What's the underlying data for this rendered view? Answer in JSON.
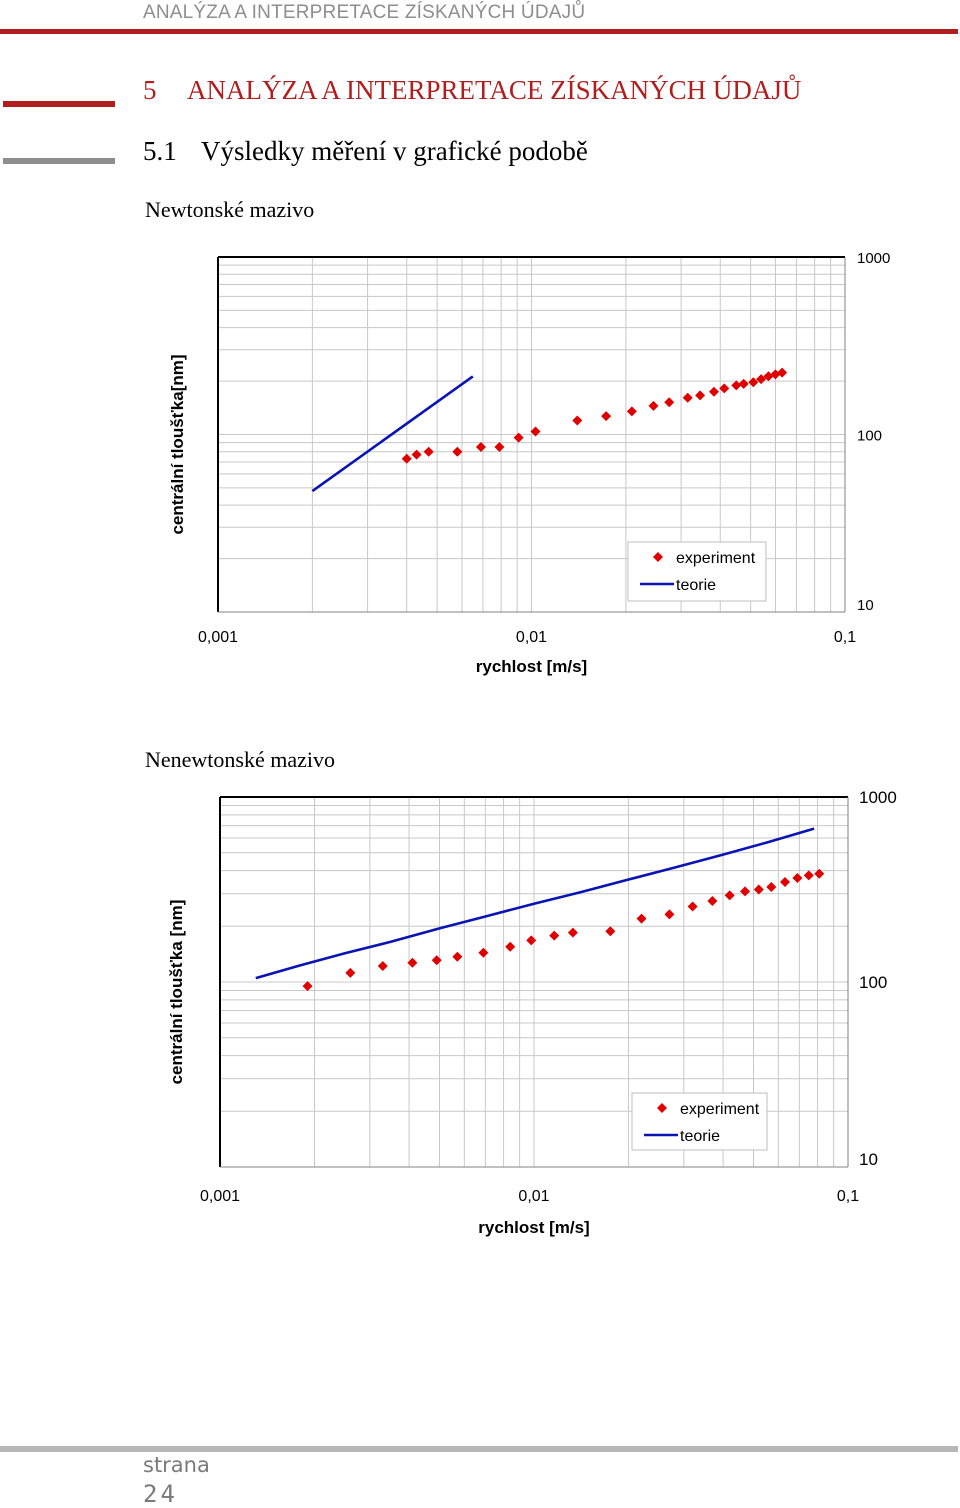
{
  "header": {
    "running_title": "ANALÝZA A INTERPRETACE ZÍSKANÝCH ÚDAJŮ"
  },
  "chapter": {
    "number": "5",
    "title": "ANALÝZA A INTERPRETACE ZÍSKANÝCH ÚDAJŮ"
  },
  "section": {
    "number": "5.1",
    "title": "Výsledky měření v grafické podobě"
  },
  "charts": [
    {
      "heading": "Newtonské mazivo"
    },
    {
      "heading": "Nenewtonské mazivo"
    }
  ],
  "colors": {
    "accent": "#b01e1e",
    "experiment": "#e00000",
    "teorie": "#0a14b4",
    "grid": "#c8c8c8"
  },
  "footer": {
    "label": "strana",
    "page": "24"
  },
  "chart_data": [
    {
      "type": "scatter",
      "title": "",
      "xlabel": "rychlost [m/s]",
      "ylabel": "centrální tloušťka[nm]",
      "x_scale": "log",
      "y_scale": "log",
      "xlim": [
        0.001,
        0.1
      ],
      "ylim": [
        10,
        1000
      ],
      "x_ticks": [
        "0,001",
        "0,01",
        "0,1"
      ],
      "y_ticks": [
        "1000",
        "100",
        "10"
      ],
      "y_axis_side": "right",
      "grid": true,
      "legend_position": "bottom-right",
      "series": [
        {
          "name": "experiment",
          "kind": "markers",
          "x": [
            0.004,
            0.0043,
            0.0047,
            0.0058,
            0.0069,
            0.0079,
            0.0091,
            0.0103,
            0.014,
            0.0173,
            0.0209,
            0.0245,
            0.0275,
            0.0315,
            0.0345,
            0.0382,
            0.0412,
            0.045,
            0.0475,
            0.051,
            0.054,
            0.057,
            0.06,
            0.063
          ],
          "y": [
            73,
            77,
            80,
            80,
            85,
            85,
            96,
            104,
            120,
            127,
            135,
            145,
            152,
            161,
            166,
            174,
            182,
            189,
            193,
            197,
            205,
            213,
            218,
            223
          ]
        },
        {
          "name": "teorie",
          "kind": "line",
          "x": [
            0.002,
            0.0065
          ],
          "y": [
            48,
            212.5
          ]
        }
      ]
    },
    {
      "type": "scatter",
      "title": "",
      "xlabel": "rychlost [m/s]",
      "ylabel": "centrální tloušťka [nm]",
      "x_scale": "log",
      "y_scale": "log",
      "xlim": [
        0.001,
        0.1
      ],
      "ylim": [
        10,
        1000
      ],
      "x_ticks": [
        "0,001",
        "0,01",
        "0,1"
      ],
      "y_ticks": [
        "1000",
        "100",
        "10"
      ],
      "y_axis_side": "right",
      "grid": true,
      "legend_position": "bottom-right",
      "series": [
        {
          "name": "experiment",
          "kind": "markers",
          "x": [
            0.0019,
            0.0026,
            0.0033,
            0.0041,
            0.0049,
            0.0057,
            0.0069,
            0.0084,
            0.0098,
            0.0116,
            0.0133,
            0.0175,
            0.022,
            0.027,
            0.032,
            0.037,
            0.042,
            0.047,
            0.052,
            0.057,
            0.063,
            0.069,
            0.075,
            0.081
          ],
          "y": [
            95,
            112,
            122,
            127,
            131,
            137,
            144,
            155,
            168,
            178,
            185,
            188,
            220,
            232,
            256,
            274,
            294,
            309,
            316,
            326,
            347,
            365,
            377,
            385
          ]
        },
        {
          "name": "teorie",
          "kind": "line",
          "x": [
            0.0013,
            0.0018,
            0.0025,
            0.0035,
            0.005,
            0.007,
            0.01,
            0.014,
            0.02,
            0.028,
            0.04,
            0.055,
            0.078
          ],
          "y": [
            105,
            123,
            143,
            165,
            195,
            226,
            265,
            305,
            358,
            415,
            488,
            567,
            675
          ]
        }
      ]
    }
  ]
}
